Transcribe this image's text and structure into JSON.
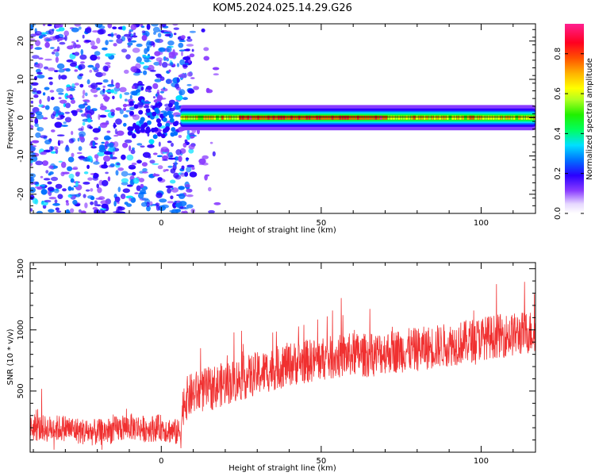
{
  "title": "KOM5.2024.025.14.29.G26",
  "colors": {
    "snr_line": "#f03030",
    "background": "#ffffff",
    "axes": "#000000",
    "signal_band_core": "#e8303a",
    "signal_band_mid": "#30e080",
    "signal_band_edge": "#4040ff",
    "noise_dots": "#7a20ff"
  },
  "chart_data": [
    {
      "type": "heatmap",
      "xlabel": "Height of straight line (km)",
      "ylabel": "Frequency (Hz)",
      "xlim": [
        -41,
        117
      ],
      "ylim": [
        -25,
        24.5
      ],
      "xticks": [
        0,
        50,
        100
      ],
      "xtick_labels": [
        "0",
        "50",
        "100"
      ],
      "yticks": [
        -20,
        -10,
        0,
        10,
        20
      ],
      "ytick_labels": [
        "-20",
        "-10",
        "0",
        "10",
        "20"
      ],
      "colorbar": {
        "label": "Normalized spectral amplitude",
        "range": [
          0,
          0.95
        ],
        "ticks": [
          0.0,
          0.2,
          0.4,
          0.6,
          0.8
        ],
        "tick_labels": [
          "0.0",
          "0.2",
          "0.4",
          "0.6",
          "0.8"
        ],
        "colormap": "gist_ncar_like"
      },
      "signal_band": {
        "start_km": 6,
        "end_km": 117,
        "center_hz": 0,
        "half_width_hz": 1.5,
        "peak_amplitude": 0.9,
        "peak_region_km": [
          24,
          70
        ]
      },
      "noise_region": {
        "x_range_km": [
          -41,
          10
        ],
        "amplitude_range": [
          0.05,
          0.3
        ]
      }
    },
    {
      "type": "line",
      "xlabel": "Height of straight line (km)",
      "ylabel": "SNR (10 * v/v)",
      "xlim": [
        -41,
        117
      ],
      "ylim": [
        0,
        1550
      ],
      "xticks": [
        0,
        50,
        100
      ],
      "xtick_labels": [
        "0",
        "50",
        "100"
      ],
      "yticks": [
        500,
        1000,
        1500
      ],
      "ytick_labels": [
        "500",
        "1000",
        "1500"
      ],
      "series": [
        {
          "x": [
            -41,
            -35,
            -30,
            -25,
            -20,
            -15,
            -10,
            -5,
            0,
            5,
            6,
            7,
            10,
            15,
            20,
            25,
            30,
            35,
            40,
            45,
            50,
            55,
            60,
            65,
            70,
            75,
            80,
            85,
            90,
            95,
            100,
            105,
            110,
            115,
            117
          ],
          "y": [
            200,
            190,
            200,
            170,
            160,
            180,
            210,
            190,
            200,
            160,
            170,
            420,
            480,
            520,
            560,
            600,
            640,
            680,
            720,
            740,
            760,
            780,
            800,
            790,
            820,
            830,
            840,
            860,
            880,
            900,
            930,
            950,
            960,
            980,
            990
          ]
        }
      ]
    }
  ]
}
